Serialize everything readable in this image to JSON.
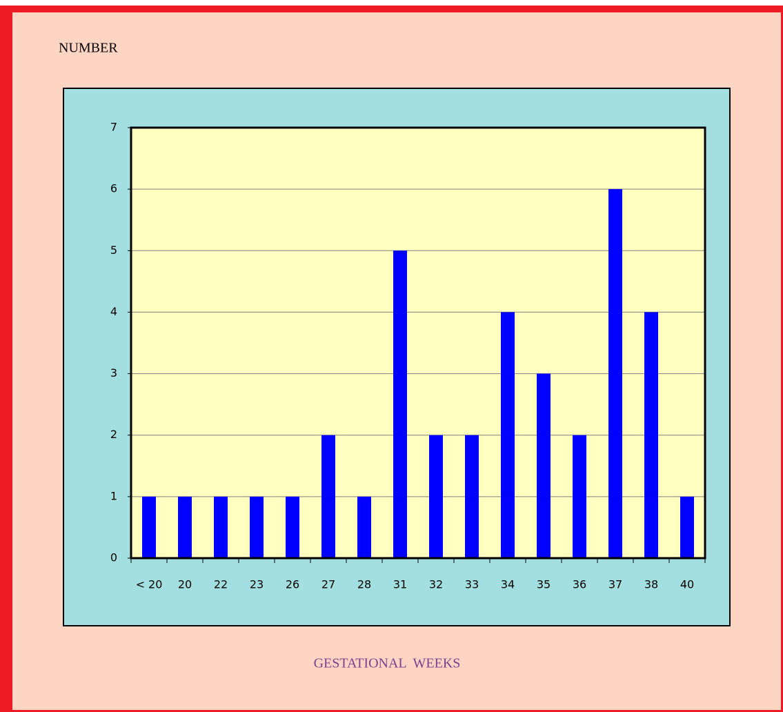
{
  "chart_data": {
    "type": "bar",
    "y_label": "NUMBER",
    "x_label": "GESTATIONAL  WEEKS",
    "categories": [
      "< 20",
      "20",
      "22",
      "23",
      "26",
      "27",
      "28",
      "31",
      "32",
      "33",
      "34",
      "35",
      "36",
      "37",
      "38",
      "40"
    ],
    "values": [
      1,
      1,
      1,
      1,
      1,
      2,
      1,
      5,
      2,
      2,
      4,
      3,
      2,
      6,
      4,
      1
    ],
    "color": "#0000ff",
    "ylim": [
      0,
      7
    ],
    "yticks": [
      0,
      1,
      2,
      3,
      4,
      5,
      6,
      7
    ],
    "grid": true
  }
}
